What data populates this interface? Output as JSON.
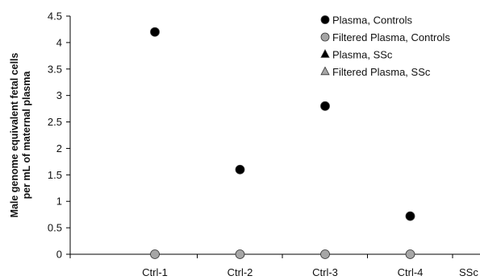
{
  "chart_data": {
    "type": "scatter",
    "title": "",
    "ylabel_lines": [
      "Male genome equivalent fetal cells",
      "per mL of maternal plasma"
    ],
    "xlabel": "",
    "ylim": [
      0,
      4.5
    ],
    "yticks": [
      "0",
      "0.5",
      "1",
      "1.5",
      "2",
      "2.5",
      "3",
      "3.5",
      "4",
      "4.5"
    ],
    "ytick_values": [
      0,
      0.5,
      1,
      1.5,
      2,
      2.5,
      3,
      3.5,
      4,
      4.5
    ],
    "categories": [
      "Ctrl-1",
      "Ctrl-2",
      "Ctrl-3",
      "Ctrl-4",
      "SSc"
    ],
    "grid": false,
    "legend_position": "top-right",
    "series": [
      {
        "name": "Plasma, Controls",
        "marker": "circle",
        "color": "#000000",
        "values": [
          4.2,
          1.6,
          2.8,
          0.72,
          null
        ]
      },
      {
        "name": "Filtered Plasma, Controls",
        "marker": "circle",
        "color": "#a6a6a6",
        "values": [
          0,
          0,
          0,
          0,
          null
        ]
      },
      {
        "name": "Plasma, SSc",
        "marker": "triangle",
        "color": "#000000",
        "values": [
          null,
          null,
          null,
          null,
          null
        ]
      },
      {
        "name": "Filtered Plasma, SSc",
        "marker": "triangle",
        "color": "#a6a6a6",
        "values": [
          null,
          null,
          null,
          null,
          null
        ]
      }
    ]
  }
}
